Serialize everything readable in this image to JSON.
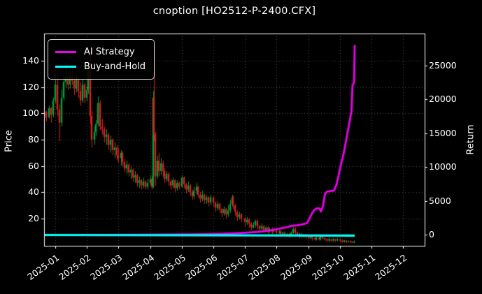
{
  "window": {
    "title": "cnoption [HO2512-P-2400.CFX]"
  },
  "chart_data": {
    "type": "candlestick",
    "title": "cnoption [HO2512-P-2400.CFX]",
    "grid": true,
    "background": "#000000",
    "x_axis": {
      "tick_labels": [
        "2025-01",
        "2025-02",
        "2025-03",
        "2025-04",
        "2025-05",
        "2025-06",
        "2025-07",
        "2025-08",
        "2025-09",
        "2025-10",
        "2025-11",
        "2025-12"
      ],
      "rotation_deg": 36
    },
    "y_left": {
      "label": "Price",
      "ticks": [
        20,
        40,
        60,
        80,
        100,
        120,
        140
      ],
      "range": [
        -1,
        161
      ]
    },
    "y_right": {
      "label": "Return",
      "ticks": [
        0,
        5000,
        10000,
        15000,
        20000,
        25000
      ],
      "range": [
        -1600,
        29700
      ]
    },
    "legend": {
      "position": "upper-left",
      "items": [
        {
          "label": "AI Strategy",
          "color": "#ee00ee"
        },
        {
          "label": "Buy-and-Hold",
          "color": "#00ffff"
        }
      ]
    },
    "colors": {
      "up": "#00a23c",
      "down": "#e11d1d",
      "grid": "#4d4d4d",
      "spine": "#ffffff",
      "text": "#ffffff",
      "ai_line": "#ee00ee",
      "bh_line": "#00ffff"
    },
    "candles": [
      [
        -0.35,
        98,
        103,
        95,
        101
      ],
      [
        -0.28,
        101,
        102,
        94,
        97
      ],
      [
        -0.21,
        97,
        106,
        96,
        104
      ],
      [
        -0.14,
        104,
        105,
        93,
        99
      ],
      [
        -0.07,
        99,
        112,
        97,
        110
      ],
      [
        0.0,
        110,
        131,
        108,
        122
      ],
      [
        0.07,
        122,
        136,
        98,
        103
      ],
      [
        0.13,
        103,
        107,
        79,
        93
      ],
      [
        0.2,
        93,
        118,
        90,
        112
      ],
      [
        0.26,
        112,
        129,
        110,
        124
      ],
      [
        0.33,
        124,
        135,
        120,
        128
      ],
      [
        0.4,
        128,
        132,
        118,
        122
      ],
      [
        0.46,
        122,
        133,
        119,
        129
      ],
      [
        0.53,
        129,
        137,
        122,
        125
      ],
      [
        0.59,
        125,
        127,
        114,
        119
      ],
      [
        0.66,
        119,
        130,
        116,
        126
      ],
      [
        0.72,
        126,
        128,
        112,
        117
      ],
      [
        0.79,
        117,
        124,
        106,
        110
      ],
      [
        0.86,
        110,
        126,
        108,
        122
      ],
      [
        0.92,
        122,
        124,
        108,
        112
      ],
      [
        0.99,
        112,
        121,
        109,
        118
      ],
      [
        1.03,
        118,
        140,
        115,
        132
      ],
      [
        1.1,
        132,
        148,
        92,
        98
      ],
      [
        1.16,
        98,
        102,
        74,
        80
      ],
      [
        1.23,
        80,
        90,
        76,
        86
      ],
      [
        1.29,
        86,
        95,
        83,
        92
      ],
      [
        1.36,
        92,
        113,
        90,
        108
      ],
      [
        1.42,
        108,
        110,
        87,
        90
      ],
      [
        1.49,
        90,
        96,
        84,
        88
      ],
      [
        1.55,
        88,
        90,
        78,
        82
      ],
      [
        1.62,
        82,
        88,
        76,
        84
      ],
      [
        1.68,
        84,
        85,
        72,
        76
      ],
      [
        1.75,
        76,
        83,
        70,
        80
      ],
      [
        1.81,
        80,
        81,
        68,
        72
      ],
      [
        1.88,
        72,
        78,
        66,
        74
      ],
      [
        1.94,
        74,
        76,
        64,
        68
      ],
      [
        2.0,
        68,
        74,
        62,
        66
      ],
      [
        2.07,
        66,
        72,
        60,
        70
      ],
      [
        2.13,
        70,
        71,
        60,
        63
      ],
      [
        2.2,
        63,
        65,
        55,
        58
      ],
      [
        2.26,
        58,
        64,
        54,
        61
      ],
      [
        2.33,
        61,
        62,
        52,
        55
      ],
      [
        2.39,
        55,
        60,
        50,
        57
      ],
      [
        2.46,
        57,
        58,
        48,
        51
      ],
      [
        2.52,
        51,
        56,
        47,
        53
      ],
      [
        2.59,
        53,
        54,
        44,
        47
      ],
      [
        2.65,
        47,
        52,
        43,
        49
      ],
      [
        2.72,
        49,
        50,
        42,
        45
      ],
      [
        2.78,
        45,
        51,
        43,
        48
      ],
      [
        2.85,
        48,
        49,
        42,
        44
      ],
      [
        2.91,
        44,
        50,
        42,
        47
      ],
      [
        3.0,
        47,
        53,
        45,
        50
      ],
      [
        3.05,
        50,
        52,
        42,
        44
      ],
      [
        3.09,
        44,
        117,
        43,
        112
      ],
      [
        3.13,
        112,
        152,
        79,
        84
      ],
      [
        3.17,
        84,
        86,
        45,
        52
      ],
      [
        3.22,
        52,
        68,
        50,
        64
      ],
      [
        3.28,
        64,
        70,
        52,
        56
      ],
      [
        3.34,
        56,
        66,
        53,
        62
      ],
      [
        3.4,
        62,
        64,
        52,
        56
      ],
      [
        3.46,
        56,
        58,
        47,
        50
      ],
      [
        3.52,
        50,
        56,
        48,
        54
      ],
      [
        3.59,
        54,
        55,
        45,
        48
      ],
      [
        3.65,
        48,
        50,
        42,
        45
      ],
      [
        3.72,
        45,
        51,
        43,
        49
      ],
      [
        3.78,
        49,
        50,
        40,
        43
      ],
      [
        3.85,
        43,
        49,
        41,
        47
      ],
      [
        3.91,
        47,
        48,
        42,
        44
      ],
      [
        4.0,
        44,
        53,
        43,
        51
      ],
      [
        4.07,
        51,
        52,
        43,
        46
      ],
      [
        4.13,
        46,
        47,
        39,
        42
      ],
      [
        4.2,
        42,
        48,
        40,
        45
      ],
      [
        4.26,
        45,
        46,
        37,
        40
      ],
      [
        4.33,
        40,
        42,
        34,
        37
      ],
      [
        4.39,
        37,
        44,
        35,
        41
      ],
      [
        4.46,
        41,
        47,
        38,
        44
      ],
      [
        4.52,
        44,
        45,
        36,
        38
      ],
      [
        4.59,
        38,
        40,
        32,
        35
      ],
      [
        4.65,
        35,
        41,
        33,
        38
      ],
      [
        4.72,
        38,
        39,
        31,
        34
      ],
      [
        4.78,
        34,
        38,
        31,
        36
      ],
      [
        4.85,
        36,
        37,
        29,
        32
      ],
      [
        4.91,
        32,
        38,
        30,
        36
      ],
      [
        5.0,
        36,
        37,
        29,
        32
      ],
      [
        5.07,
        32,
        33,
        25,
        28
      ],
      [
        5.13,
        28,
        33,
        26,
        31
      ],
      [
        5.2,
        31,
        32,
        24,
        27
      ],
      [
        5.26,
        27,
        28,
        21,
        24
      ],
      [
        5.33,
        24,
        29,
        22,
        27
      ],
      [
        5.39,
        27,
        28,
        20,
        23
      ],
      [
        5.46,
        23,
        30,
        21,
        26
      ],
      [
        5.52,
        26,
        34,
        24,
        31
      ],
      [
        5.59,
        31,
        38,
        29,
        36
      ],
      [
        5.63,
        36,
        37,
        27,
        30
      ],
      [
        5.69,
        30,
        31,
        22,
        25
      ],
      [
        5.76,
        25,
        26,
        18,
        21
      ],
      [
        5.82,
        21,
        25,
        19,
        23
      ],
      [
        5.89,
        23,
        24,
        17,
        20
      ],
      [
        6.0,
        20,
        21,
        14,
        17
      ],
      [
        6.07,
        17,
        21,
        15,
        19
      ],
      [
        6.13,
        19,
        20,
        13,
        16
      ],
      [
        6.2,
        16,
        17,
        11,
        13
      ],
      [
        6.26,
        13,
        17,
        12,
        15
      ],
      [
        6.33,
        15,
        19,
        13,
        18
      ],
      [
        6.39,
        18,
        19,
        12,
        14
      ],
      [
        6.46,
        14,
        15,
        10,
        12
      ],
      [
        6.52,
        12,
        16,
        11,
        14
      ],
      [
        6.59,
        14,
        15,
        9,
        11
      ],
      [
        6.65,
        11,
        14,
        10,
        13
      ],
      [
        6.72,
        13,
        14,
        8,
        10
      ],
      [
        6.78,
        10,
        13,
        9,
        12
      ],
      [
        6.85,
        12,
        13,
        8,
        10
      ],
      [
        6.91,
        10,
        12,
        9,
        11
      ],
      [
        7.0,
        11,
        12,
        7,
        9
      ],
      [
        7.07,
        9,
        11,
        8,
        10
      ],
      [
        7.13,
        10,
        11,
        7,
        8
      ],
      [
        7.2,
        8,
        10,
        7,
        9
      ],
      [
        7.26,
        9,
        10,
        6,
        7
      ],
      [
        7.33,
        7,
        9,
        6,
        8
      ],
      [
        7.39,
        8,
        9,
        5,
        7
      ],
      [
        7.46,
        7,
        10,
        6,
        9
      ],
      [
        7.52,
        9,
        13,
        8,
        12
      ],
      [
        7.59,
        12,
        13,
        7,
        9
      ],
      [
        7.65,
        9,
        10,
        6,
        7
      ],
      [
        7.72,
        7,
        9,
        5,
        8
      ],
      [
        7.78,
        8,
        9,
        5,
        6
      ],
      [
        7.85,
        6,
        8,
        5,
        7
      ],
      [
        7.91,
        7,
        8,
        4,
        6
      ],
      [
        8.0,
        6,
        7,
        4,
        5
      ],
      [
        8.07,
        5,
        7,
        4,
        6
      ],
      [
        8.13,
        6,
        7,
        3,
        5
      ],
      [
        8.2,
        5,
        6,
        3,
        4
      ],
      [
        8.26,
        4,
        6,
        3,
        5
      ],
      [
        8.33,
        5,
        6,
        3,
        4
      ],
      [
        8.39,
        4,
        7,
        3,
        6
      ],
      [
        8.46,
        6,
        7,
        4,
        5
      ],
      [
        8.52,
        5,
        5.5,
        3,
        4
      ],
      [
        8.59,
        4,
        5,
        2,
        3
      ],
      [
        8.65,
        3,
        5,
        2,
        4
      ],
      [
        8.72,
        4,
        4.5,
        2,
        3
      ],
      [
        8.78,
        3,
        5,
        2,
        4
      ],
      [
        8.85,
        4,
        4.5,
        2,
        3
      ],
      [
        8.91,
        3,
        5,
        2.5,
        4
      ],
      [
        9.0,
        4,
        4.5,
        2,
        3
      ],
      [
        9.07,
        3,
        4,
        1.5,
        2
      ],
      [
        9.13,
        2,
        3.5,
        1.5,
        3
      ],
      [
        9.2,
        3,
        3.2,
        1,
        2
      ],
      [
        9.26,
        2,
        3,
        1.5,
        2.5
      ],
      [
        9.33,
        2.5,
        3,
        1,
        2
      ],
      [
        9.39,
        2,
        2.5,
        1,
        1.5
      ],
      [
        9.45,
        1.5,
        3,
        1,
        2.5
      ]
    ],
    "series": [
      {
        "name": "AI Strategy",
        "axis": "right",
        "color": "#ee00ee",
        "line_width": 2.8,
        "points": [
          [
            -0.35,
            0
          ],
          [
            0.5,
            5
          ],
          [
            1.5,
            15
          ],
          [
            2.5,
            30
          ],
          [
            3.5,
            55
          ],
          [
            4.3,
            80
          ],
          [
            4.8,
            110
          ],
          [
            5.2,
            160
          ],
          [
            5.6,
            230
          ],
          [
            5.9,
            290
          ],
          [
            6.15,
            360
          ],
          [
            6.4,
            450
          ],
          [
            6.6,
            560
          ],
          [
            6.8,
            680
          ],
          [
            6.95,
            800
          ],
          [
            7.1,
            930
          ],
          [
            7.25,
            1080
          ],
          [
            7.35,
            1150
          ],
          [
            7.42,
            1300
          ],
          [
            7.52,
            1360
          ],
          [
            7.65,
            1430
          ],
          [
            7.78,
            1520
          ],
          [
            7.9,
            1650
          ],
          [
            7.97,
            1800
          ],
          [
            8.02,
            2250
          ],
          [
            8.12,
            3200
          ],
          [
            8.2,
            3700
          ],
          [
            8.28,
            3950
          ],
          [
            8.36,
            3900
          ],
          [
            8.4,
            3450
          ],
          [
            8.47,
            4300
          ],
          [
            8.53,
            6050
          ],
          [
            8.6,
            6400
          ],
          [
            8.72,
            6480
          ],
          [
            8.82,
            6550
          ],
          [
            8.9,
            7500
          ],
          [
            8.97,
            9000
          ],
          [
            9.04,
            10500
          ],
          [
            9.12,
            12000
          ],
          [
            9.2,
            14000
          ],
          [
            9.28,
            16000
          ],
          [
            9.33,
            17300
          ],
          [
            9.37,
            18300
          ],
          [
            9.4,
            22100
          ],
          [
            9.43,
            22300
          ],
          [
            9.45,
            22500
          ],
          [
            9.47,
            28000
          ]
        ]
      },
      {
        "name": "Buy-and-Hold",
        "axis": "right",
        "color": "#00ffff",
        "line_width": 3.2,
        "points": [
          [
            -0.35,
            -2
          ],
          [
            9.47,
            -98
          ]
        ]
      }
    ]
  }
}
